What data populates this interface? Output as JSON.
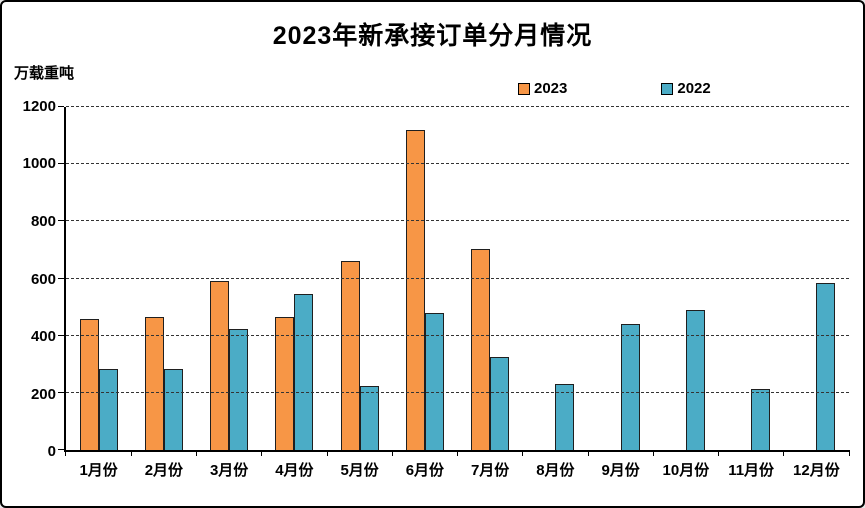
{
  "title": "2023年新承接订单分月情况",
  "y_axis_unit": "万载重吨",
  "colors": {
    "series_2023": "#F79646",
    "series_2022": "#4BACC6",
    "bar_border": "#1f1f1f",
    "axis": "#000000"
  },
  "chart_data": {
    "type": "bar",
    "title": "2023年新承接订单分月情况",
    "ylabel": "万载重吨",
    "categories": [
      "1月份",
      "2月份",
      "3月份",
      "4月份",
      "5月份",
      "6月份",
      "7月份",
      "8月份",
      "9月份",
      "10月份",
      "11月份",
      "12月份"
    ],
    "series": [
      {
        "name": "2023",
        "color": "#F79646",
        "values": [
          460,
          465,
          590,
          465,
          660,
          1120,
          705,
          null,
          null,
          null,
          null,
          null
        ]
      },
      {
        "name": "2022",
        "color": "#4BACC6",
        "values": [
          285,
          285,
          425,
          545,
          225,
          480,
          325,
          230,
          440,
          490,
          215,
          585
        ]
      }
    ],
    "ylim": [
      0,
      1200
    ],
    "y_ticks": [
      0,
      200,
      400,
      600,
      800,
      1000,
      1200
    ],
    "grid": "horizontal-dashed",
    "legend_position": "top-center-right"
  }
}
